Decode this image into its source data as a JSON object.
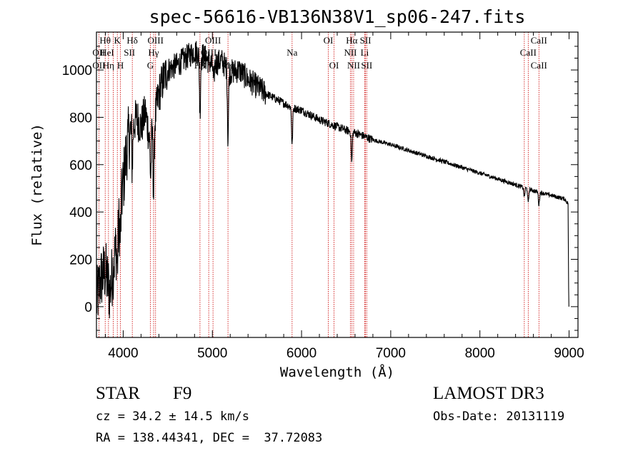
{
  "chart_data": {
    "type": "line",
    "title": "spec-56616-VB136N38V1_sp06-247.fits",
    "xlabel": "Wavelength (Å)",
    "ylabel": "Flux (relative)",
    "xlim": [
      3700,
      9100
    ],
    "ylim": [
      -130,
      1160
    ],
    "xticks": [
      4000,
      5000,
      6000,
      7000,
      8000,
      9000
    ],
    "yticks": [
      0,
      200,
      400,
      600,
      800,
      1000
    ],
    "anchors": [
      [
        3700,
        20
      ],
      [
        3750,
        120
      ],
      [
        3800,
        150
      ],
      [
        3850,
        60
      ],
      [
        3900,
        200
      ],
      [
        3950,
        340
      ],
      [
        4000,
        520
      ],
      [
        4050,
        700
      ],
      [
        4100,
        750
      ],
      [
        4150,
        800
      ],
      [
        4200,
        760
      ],
      [
        4250,
        820
      ],
      [
        4300,
        700
      ],
      [
        4350,
        780
      ],
      [
        4400,
        900
      ],
      [
        4450,
        960
      ],
      [
        4500,
        1000
      ],
      [
        4600,
        1020
      ],
      [
        4700,
        1050
      ],
      [
        4800,
        1080
      ],
      [
        4900,
        1060
      ],
      [
        5000,
        1020
      ],
      [
        5100,
        1040
      ],
      [
        5200,
        990
      ],
      [
        5300,
        1000
      ],
      [
        5400,
        960
      ],
      [
        5500,
        930
      ],
      [
        5600,
        900
      ],
      [
        5700,
        880
      ],
      [
        5800,
        860
      ],
      [
        5900,
        840
      ],
      [
        6000,
        830
      ],
      [
        6100,
        810
      ],
      [
        6200,
        790
      ],
      [
        6300,
        775
      ],
      [
        6400,
        760
      ],
      [
        6500,
        745
      ],
      [
        6600,
        735
      ],
      [
        6700,
        720
      ],
      [
        6800,
        705
      ],
      [
        7000,
        685
      ],
      [
        7200,
        660
      ],
      [
        7400,
        636
      ],
      [
        7600,
        612
      ],
      [
        7800,
        588
      ],
      [
        8000,
        564
      ],
      [
        8200,
        540
      ],
      [
        8400,
        515
      ],
      [
        8600,
        490
      ],
      [
        8800,
        470
      ],
      [
        8950,
        455
      ],
      [
        8990,
        435
      ]
    ],
    "absorptions": [
      [
        3934,
        120
      ],
      [
        3969,
        110
      ],
      [
        4102,
        140
      ],
      [
        4308,
        160
      ],
      [
        4341,
        300
      ],
      [
        4861,
        250
      ],
      [
        5015,
        80
      ],
      [
        5175,
        300
      ],
      [
        5894,
        160
      ],
      [
        6563,
        130
      ],
      [
        8498,
        40
      ],
      [
        8542,
        60
      ],
      [
        8662,
        55
      ]
    ],
    "lines": [
      {
        "label": "Hθ",
        "x": 3798,
        "row": 1
      },
      {
        "label": "K",
        "x": 3934,
        "row": 1
      },
      {
        "label": "Hδ",
        "x": 4102,
        "row": 1
      },
      {
        "label": "OII",
        "x": 3727,
        "row": 2
      },
      {
        "label": "HeI",
        "x": 3820,
        "row": 2
      },
      {
        "label": "SII",
        "x": 4070,
        "row": 2
      },
      {
        "label": "OII",
        "x": 3727,
        "row": 3
      },
      {
        "label": "Hη",
        "x": 3835,
        "row": 3
      },
      {
        "label": "H",
        "x": 3969,
        "row": 3
      },
      {
        "label": "OIII",
        "x": 4363,
        "row": 1
      },
      {
        "label": "Hγ",
        "x": 4341,
        "row": 2
      },
      {
        "label": "G",
        "x": 4304,
        "row": 3
      },
      {
        "label": "OIII",
        "x": 5007,
        "row": 1
      },
      {
        "label": "OIII",
        "x": 4959,
        "row": 2
      },
      {
        "label": "Hβ",
        "x": 4861,
        "row": 3
      },
      {
        "label": "Mg",
        "x": 5175,
        "row": 3
      },
      {
        "label": "Na",
        "x": 5894,
        "row": 2
      },
      {
        "label": "OI",
        "x": 6300,
        "row": 1
      },
      {
        "label": "OI",
        "x": 6364,
        "row": 3
      },
      {
        "label": "Hα",
        "x": 6563,
        "row": 1
      },
      {
        "label": "SII",
        "x": 6717,
        "row": 1
      },
      {
        "label": "NII",
        "x": 6548,
        "row": 2
      },
      {
        "label": "Li",
        "x": 6708,
        "row": 2
      },
      {
        "label": "NII",
        "x": 6584,
        "row": 3
      },
      {
        "label": "SII",
        "x": 6731,
        "row": 3
      },
      {
        "label": "CaII",
        "x": 8662,
        "row": 1
      },
      {
        "label": "CaII",
        "x": 8542,
        "row": 2
      },
      {
        "label": "CaII",
        "x": 8662,
        "row": 3
      }
    ],
    "line_markers_x": [
      3727,
      3798,
      3835,
      3889,
      3934,
      3969,
      4102,
      4304,
      4341,
      4363,
      4861,
      4959,
      5007,
      5175,
      5894,
      6300,
      6364,
      6548,
      6563,
      6584,
      6708,
      6717,
      6731,
      8498,
      8542,
      8662
    ]
  },
  "info": {
    "object_class": "STAR",
    "subclass": "F9",
    "survey": "LAMOST DR3",
    "redshift": "cz = 34.2 ± 14.5 km/s",
    "obs_date": "Obs-Date: 20131119",
    "coords": "RA = 138.44341, DEC =  37.72083"
  },
  "colors": {
    "line_marker": "#cc0000",
    "spectrum": "#000000"
  }
}
